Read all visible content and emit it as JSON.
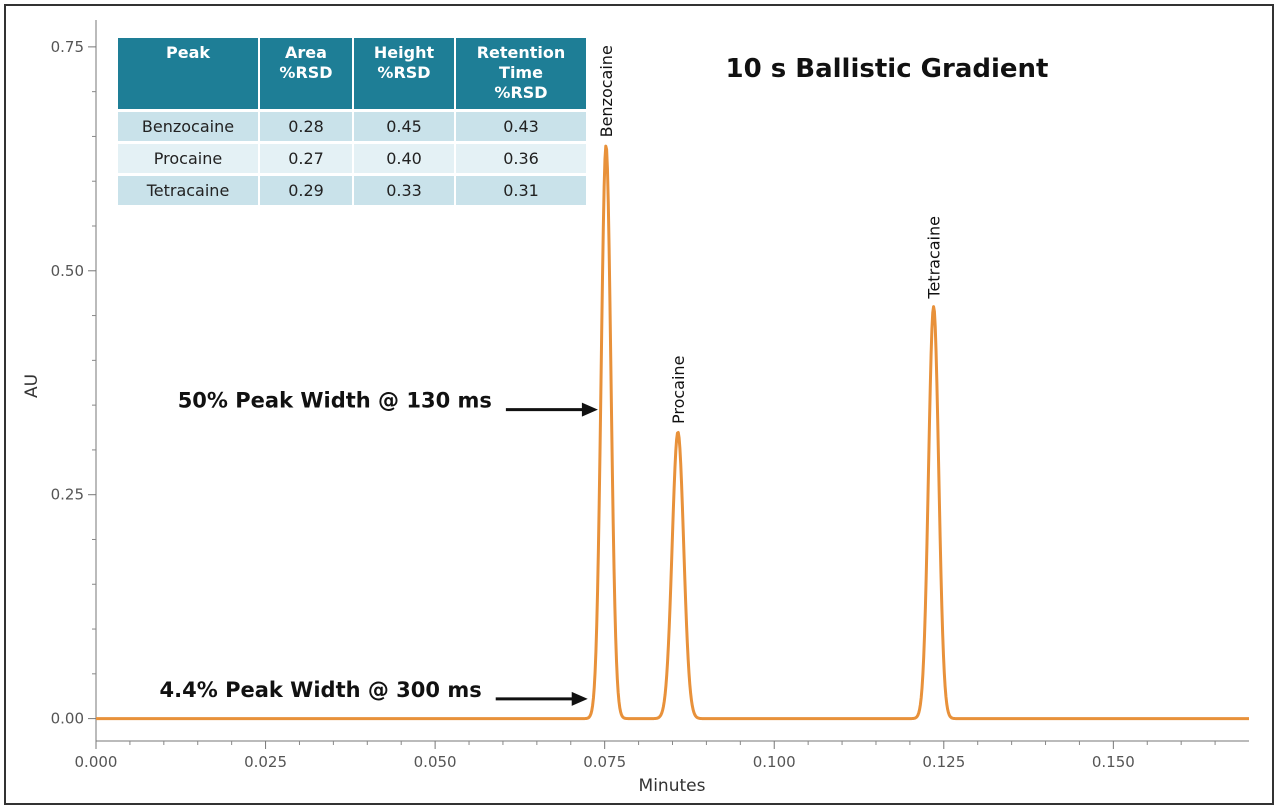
{
  "chart_data": {
    "type": "line",
    "title": "10 s Ballistic Gradient",
    "xlabel": "Minutes",
    "ylabel": "AU",
    "xlim": [
      0.0,
      0.17
    ],
    "ylim": [
      -0.025,
      0.78
    ],
    "x_ticks": [
      "0.000",
      "0.025",
      "0.050",
      "0.075",
      "0.100",
      "0.125",
      "0.150"
    ],
    "y_ticks": [
      "0.75",
      "0.50",
      "0.25",
      "0.00"
    ],
    "line_color": "#e8913a",
    "peaks": [
      {
        "name": "Benzocaine",
        "retention_min": 0.0752,
        "height_au": 0.64
      },
      {
        "name": "Procaine",
        "retention_min": 0.0858,
        "height_au": 0.32
      },
      {
        "name": "Tetracaine",
        "retention_min": 0.1235,
        "height_au": 0.46
      }
    ],
    "annotations": [
      {
        "text": "50% Peak Width @ 130 ms",
        "x": 0.074,
        "y": 0.345
      },
      {
        "text": "4.4% Peak Width @ 300 ms",
        "x": 0.0725,
        "y": 0.022
      }
    ],
    "table": {
      "headers": [
        [
          "Peak"
        ],
        [
          "Area",
          "%RSD"
        ],
        [
          "Height",
          "%RSD"
        ],
        [
          "Retention",
          "Time",
          "%RSD"
        ]
      ],
      "rows": [
        [
          "Benzocaine",
          "0.28",
          "0.45",
          "0.43"
        ],
        [
          "Procaine",
          "0.27",
          "0.40",
          "0.36"
        ],
        [
          "Tetracaine",
          "0.29",
          "0.33",
          "0.31"
        ]
      ]
    }
  }
}
